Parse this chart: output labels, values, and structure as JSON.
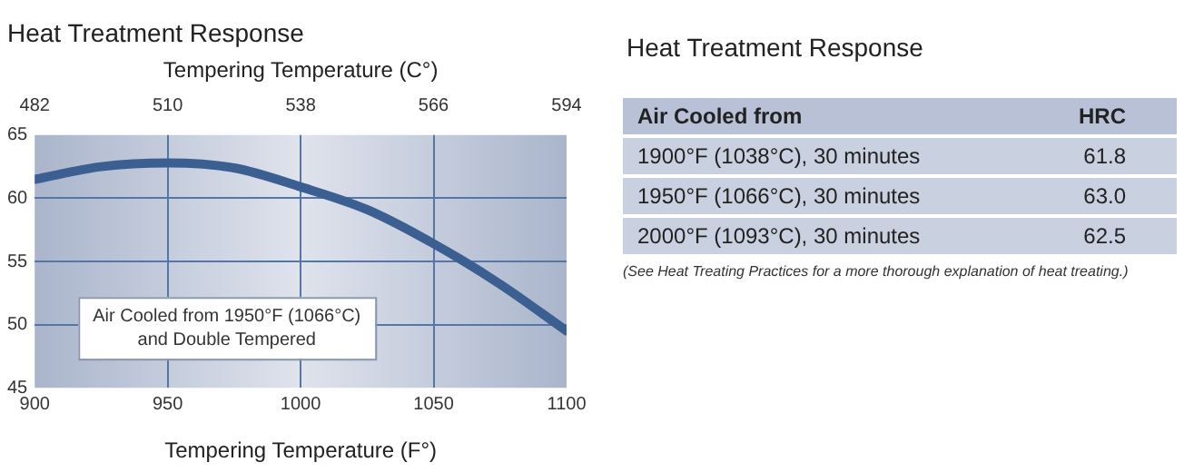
{
  "chart_data": [
    {
      "type": "line",
      "title": "Heat Treatment Response",
      "xlabel": "Tempering Temperature (F°)",
      "x2label": "Tempering Temperature (C°)",
      "x": [
        900,
        925,
        950,
        975,
        1000,
        1025,
        1050,
        1075,
        1100
      ],
      "series": [
        {
          "color": "#3b5f90",
          "values": [
            61.5,
            62.5,
            62.8,
            62.4,
            60.9,
            59.1,
            56.4,
            53.2,
            49.5
          ]
        }
      ],
      "xlim": [
        900,
        1100
      ],
      "xticks": [
        900,
        950,
        1000,
        1050,
        1100
      ],
      "x2lim": [
        482,
        594
      ],
      "x2ticks": [
        482,
        510,
        538,
        566,
        594
      ],
      "ylim": [
        45,
        65
      ],
      "yticks": [
        45,
        50,
        55,
        60,
        65
      ],
      "grid": true,
      "legend": false,
      "marker": "none",
      "line_style": "solid",
      "annotations": [
        "Air Cooled from 1950°F (1066°C)\nand Double Tempered"
      ]
    },
    {
      "type": "other",
      "title": "Heat Treatment Response",
      "xlabel": "Air Cooled from",
      "ylabel": "HRC",
      "categories": [
        "1900°F (1038°C), 30 minutes",
        "1950°F (1066°C), 30 minutes",
        "2000°F (1093°C), 30 minutes"
      ],
      "value_labels": [
        "61.8",
        "63.0",
        "62.5"
      ],
      "annotations": [
        "(See Heat Treating Practices for a more thorough explanation of heat treating.)"
      ]
    }
  ]
}
